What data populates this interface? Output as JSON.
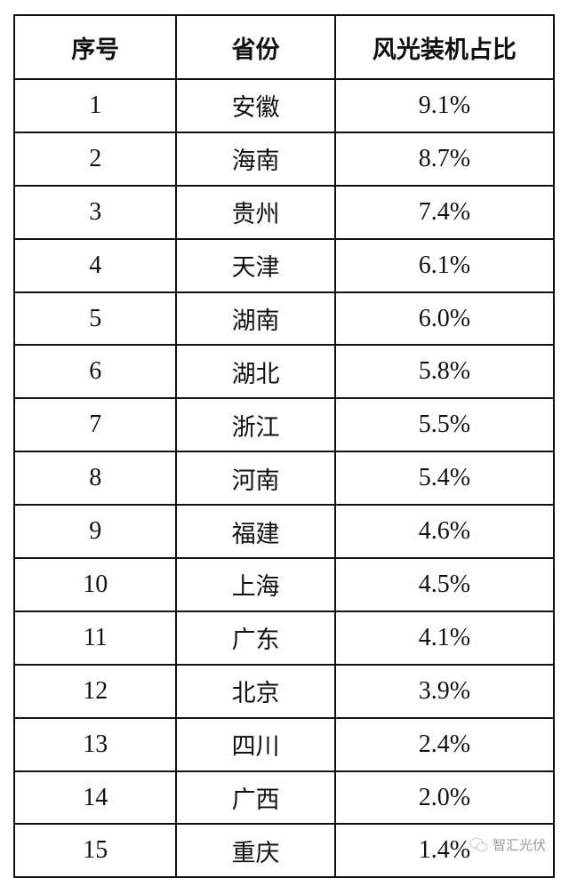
{
  "table": {
    "headers": [
      "序号",
      "省份",
      "风光装机占比"
    ],
    "rows": [
      [
        "1",
        "安徽",
        "9.1%"
      ],
      [
        "2",
        "海南",
        "8.7%"
      ],
      [
        "3",
        "贵州",
        "7.4%"
      ],
      [
        "4",
        "天津",
        "6.1%"
      ],
      [
        "5",
        "湖南",
        "6.0%"
      ],
      [
        "6",
        "湖北",
        "5.8%"
      ],
      [
        "7",
        "浙江",
        "5.5%"
      ],
      [
        "8",
        "河南",
        "5.4%"
      ],
      [
        "9",
        "福建",
        "4.6%"
      ],
      [
        "10",
        "上海",
        "4.5%"
      ],
      [
        "11",
        "广东",
        "4.1%"
      ],
      [
        "12",
        "北京",
        "3.9%"
      ],
      [
        "13",
        "四川",
        "2.4%"
      ],
      [
        "14",
        "广西",
        "2.0%"
      ],
      [
        "15",
        "重庆",
        "1.4%"
      ]
    ]
  },
  "watermark": {
    "text": "智汇光伏",
    "icon": "wechat-icon"
  }
}
